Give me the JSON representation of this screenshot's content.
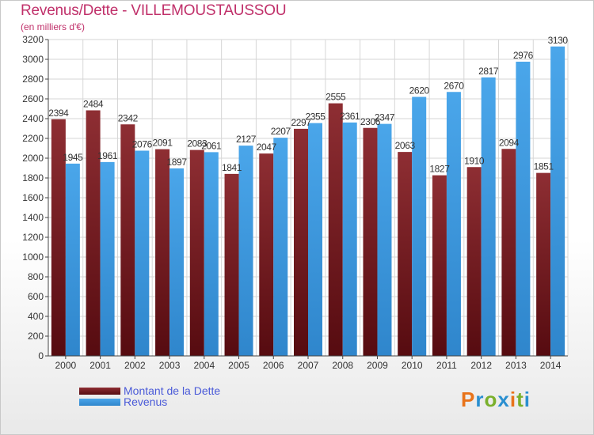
{
  "header": {
    "title": "Revenus/Dette - VILLEMOUSTAUSSOU",
    "subtitle": "(en milliers d'€)"
  },
  "logo": {
    "letters": [
      "P",
      "r",
      "o",
      "x",
      "i",
      "t",
      "i"
    ],
    "colors": [
      "#e8731a",
      "#2a8fd0",
      "#7ab02c",
      "#2a8fd0",
      "#e8731a",
      "#7ab02c",
      "#2a8fd0"
    ]
  },
  "legend": [
    {
      "label": "Montant de la Dette",
      "color": "#7a1f24"
    },
    {
      "label": "Revenus",
      "color": "#3d97de"
    }
  ],
  "chart_data": {
    "type": "bar",
    "title": "Revenus/Dette - VILLEMOUSTAUSSOU",
    "subtitle": "(en milliers d'€)",
    "categories": [
      "2000",
      "2001",
      "2002",
      "2003",
      "2004",
      "2005",
      "2006",
      "2007",
      "2008",
      "2009",
      "2010",
      "2011",
      "2012",
      "2013",
      "2014"
    ],
    "series": [
      {
        "name": "Montant de la Dette",
        "color": "#7a1f24",
        "values": [
          2394,
          2484,
          2342,
          2091,
          2083,
          1841,
          2047,
          2297,
          2555,
          2306,
          2063,
          1827,
          1910,
          2094,
          1851
        ],
        "labels": [
          "2394",
          "2484",
          "2342",
          "2091",
          "2083",
          "1841",
          "2047",
          "2297",
          "2555",
          "2306",
          "2063",
          "1827",
          "1910",
          "2094",
          "1851"
        ]
      },
      {
        "name": "Revenus",
        "color": "#3d97de",
        "values": [
          1945,
          1961,
          2076,
          1897,
          2061,
          2127,
          2207,
          2355,
          2361,
          2347,
          2620,
          2670,
          2817,
          2976,
          3130
        ],
        "labels": [
          "1945",
          "1961",
          "2076",
          "1897",
          "2061",
          "2127",
          "2207",
          "2355",
          "2361",
          "2347",
          "2620",
          "2670",
          "2817",
          "2976",
          "3130"
        ]
      }
    ],
    "ylim": [
      0,
      3200
    ],
    "ytick_step": 200,
    "grid": true,
    "legend_position": "bottom-left"
  }
}
